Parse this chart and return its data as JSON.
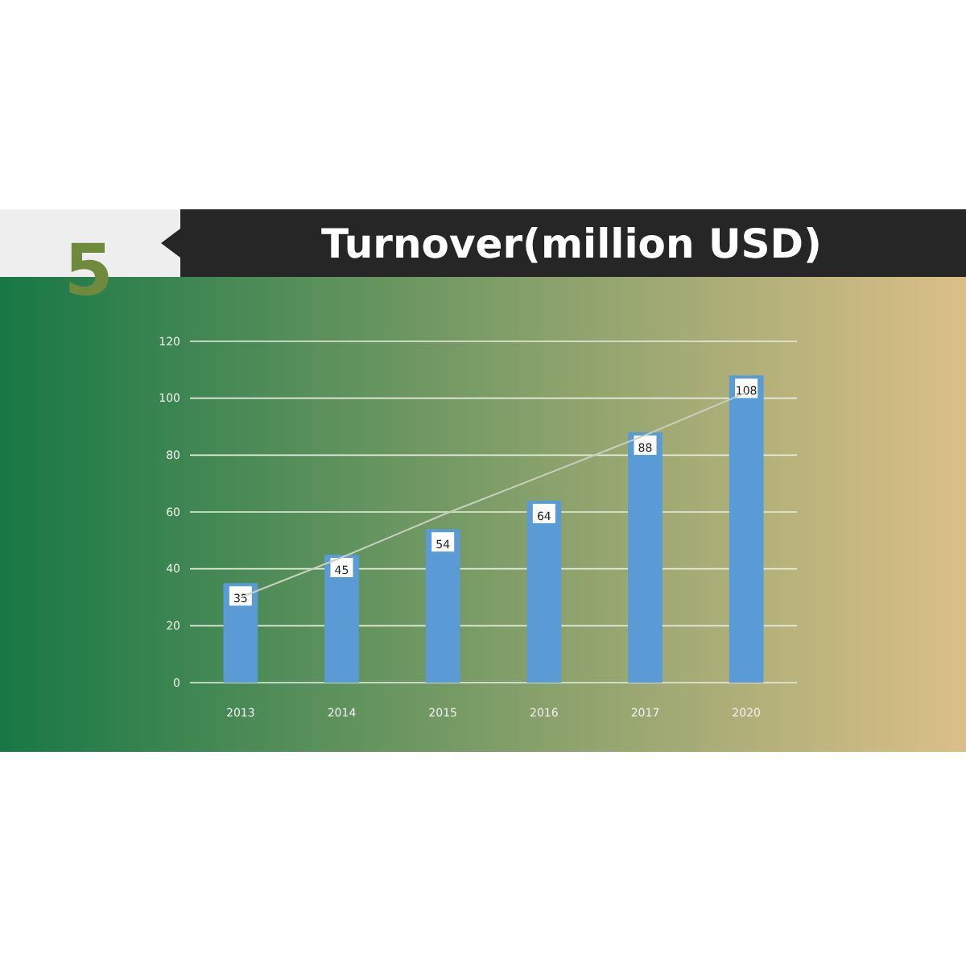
{
  "chart_data": {
    "type": "bar",
    "title": "Turnover(million USD)",
    "annotations": [
      "5"
    ],
    "categories": [
      "2013",
      "2014",
      "2015",
      "2016",
      "2017",
      "2020"
    ],
    "series": [
      {
        "color": "#5b9bd5",
        "values": [
          35,
          45,
          54,
          64,
          88,
          108
        ],
        "value_labels": [
          "35",
          "45",
          "54",
          "64",
          "88",
          "108"
        ]
      },
      {
        "type": "line",
        "color": "#c8d0c0",
        "values": [
          30,
          44,
          59,
          73,
          87,
          102
        ]
      }
    ],
    "ylim": [
      0,
      120
    ],
    "yticks": [
      0,
      20,
      40,
      60,
      80,
      100,
      120
    ],
    "grid": "y"
  }
}
